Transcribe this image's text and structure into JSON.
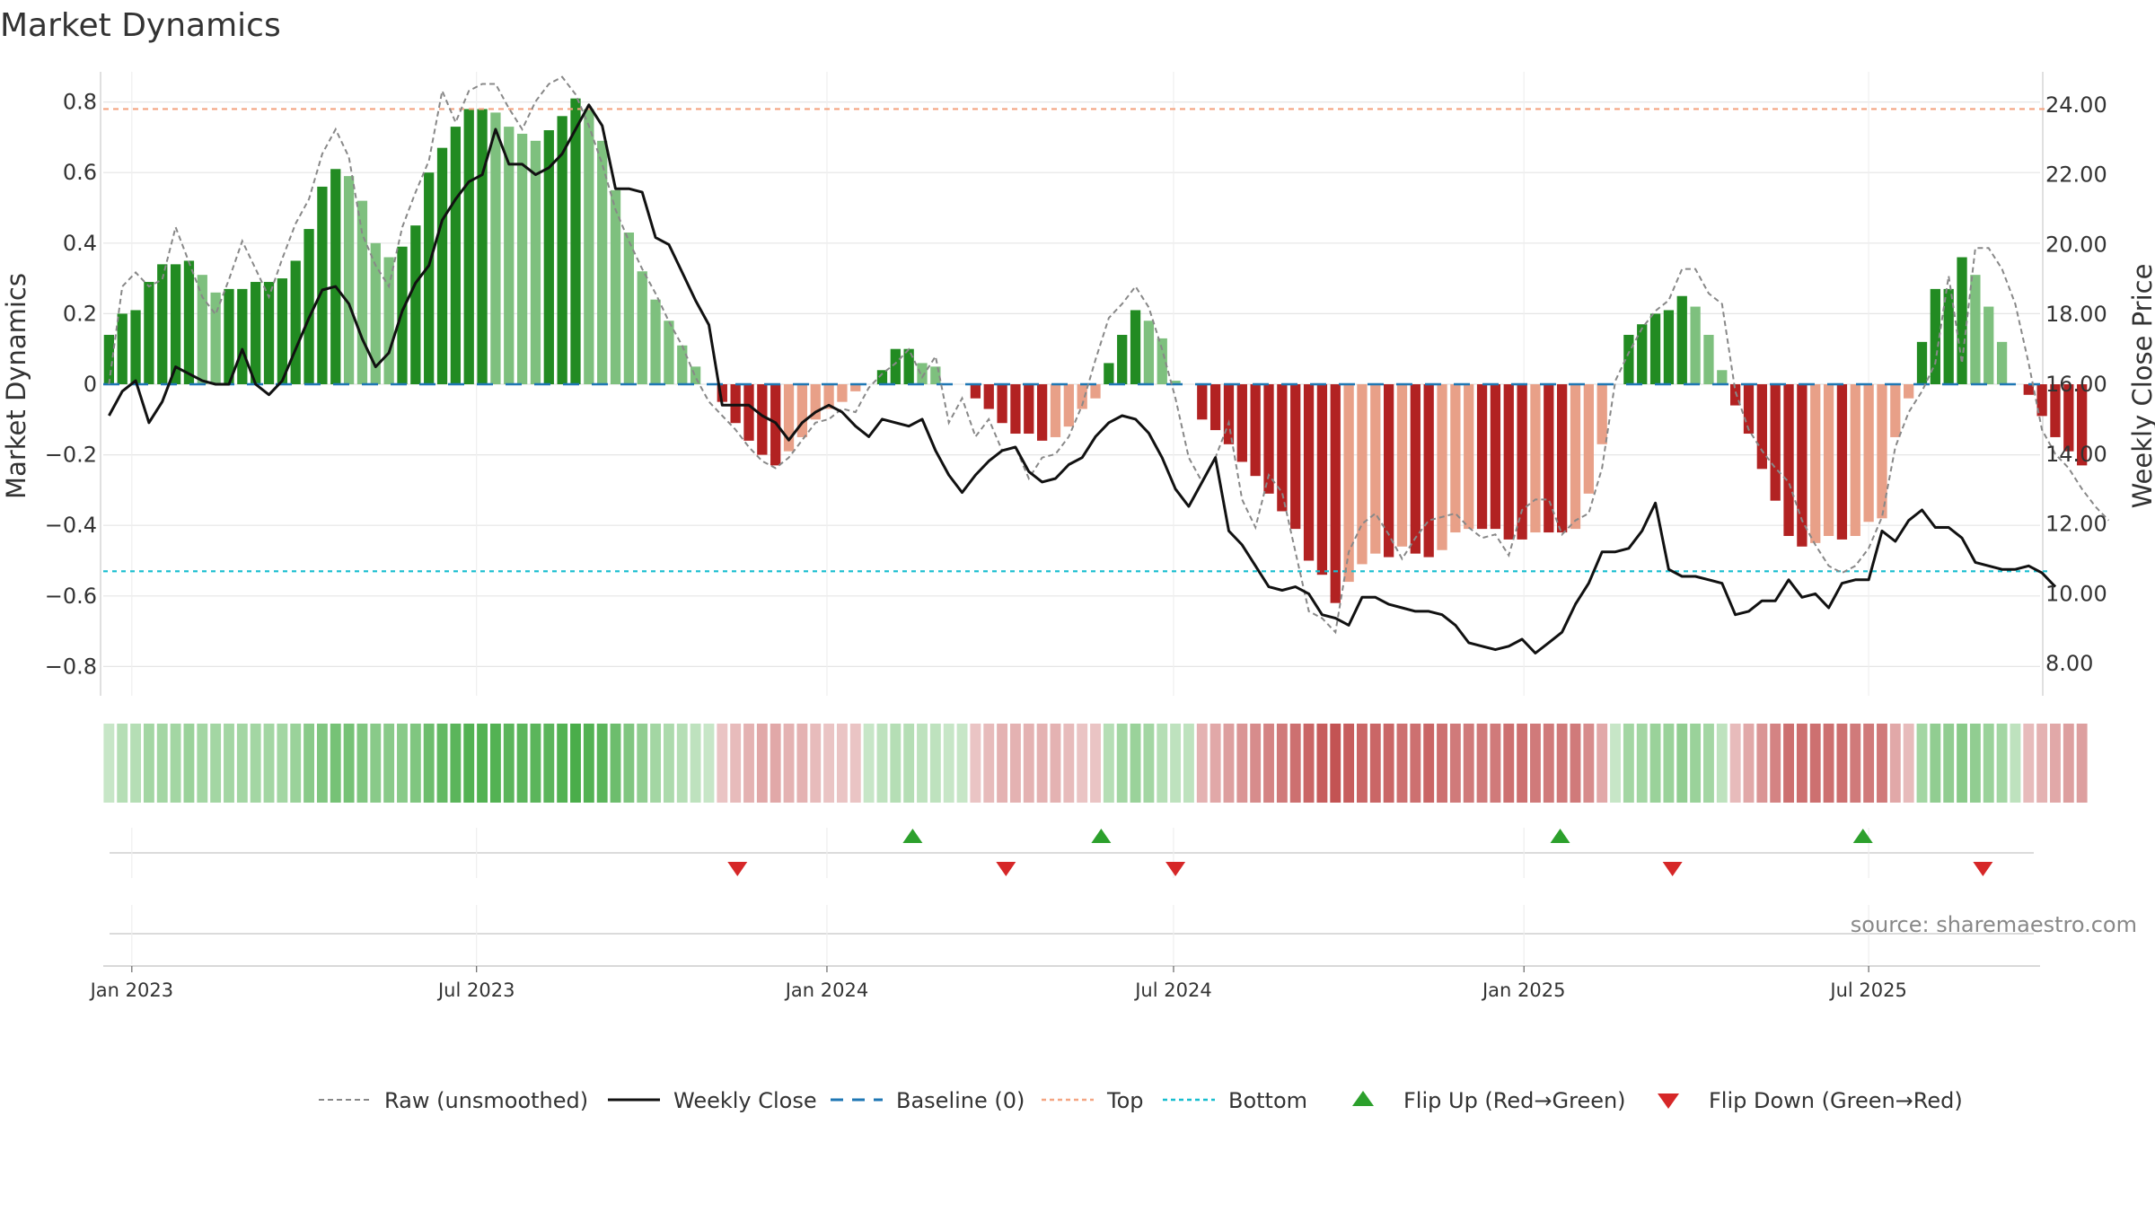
{
  "colors": {
    "green_dark": "#228B22",
    "green_light": "#7EC07E",
    "red_dark": "#B22222",
    "red_light": "#E8A088",
    "close": "#111111",
    "raw": "#888888",
    "baseline": "#1F77B4",
    "top": "#F4A582",
    "bottom": "#17BECF",
    "flip_up": "#2CA02C",
    "flip_down": "#D62728"
  },
  "chart_data": {
    "type": "bar",
    "title": "Market Dynamics",
    "ylabel_left": "Market Dynamics",
    "ylabel_right": "Weekly Close Price",
    "xlabel": "",
    "ylim_left": [
      -0.87,
      0.85
    ],
    "ylim_right": [
      6.85,
      24.72
    ],
    "yticks_left": [
      0.8,
      0.6,
      0.4,
      0.2,
      0,
      -0.2,
      -0.4,
      -0.6,
      -0.8
    ],
    "ytick_labels_left": [
      "0.8",
      "0.6",
      "0.4",
      "0.2",
      "0",
      "−0.2",
      "−0.4",
      "−0.6",
      "−0.8"
    ],
    "yticks_right": [
      24,
      22,
      20,
      18,
      16,
      14,
      12,
      10,
      8
    ],
    "ytick_labels_right": [
      "24.00",
      "22.00",
      "20.00",
      "18.00",
      "16.00",
      "14.00",
      "12.00",
      "10.00",
      "8.00"
    ],
    "start_date": "2022-12-20",
    "x_range": [
      "2022-12-17",
      "2025-09-29"
    ],
    "date_ticks": [
      {
        "label": "Jan 2023",
        "date": "2023-01-01"
      },
      {
        "label": "Jul 2023",
        "date": "2023-07-01"
      },
      {
        "label": "Jan 2024",
        "date": "2024-01-01"
      },
      {
        "label": "Jul 2024",
        "date": "2024-07-01"
      },
      {
        "label": "Jan 2025",
        "date": "2025-01-01"
      },
      {
        "label": "Jul 2025",
        "date": "2025-07-01"
      }
    ],
    "grid": true,
    "legend_position": "bottom",
    "top_level": 0.78,
    "bottom_level": -0.53,
    "baseline": 0,
    "series": [
      {
        "name": "Market Dynamics",
        "values": [
          0.14,
          0.2,
          0.21,
          0.29,
          0.34,
          0.34,
          0.35,
          0.31,
          0.26,
          0.27,
          0.27,
          0.29,
          0.29,
          0.3,
          0.35,
          0.44,
          0.56,
          0.61,
          0.59,
          0.52,
          0.4,
          0.36,
          0.39,
          0.45,
          0.6,
          0.67,
          0.73,
          0.78,
          0.78,
          0.77,
          0.73,
          0.71,
          0.69,
          0.72,
          0.76,
          0.81,
          0.78,
          0.69,
          0.55,
          0.43,
          0.32,
          0.24,
          0.18,
          0.11,
          0.05,
          0,
          -0.05,
          -0.11,
          -0.16,
          -0.2,
          -0.23,
          -0.19,
          -0.15,
          -0.1,
          -0.07,
          -0.05,
          -0.02,
          0,
          0.04,
          0.1,
          0.1,
          0.06,
          0.05,
          0,
          0,
          -0.04,
          -0.07,
          -0.11,
          -0.14,
          -0.14,
          -0.16,
          -0.15,
          -0.12,
          -0.07,
          -0.04,
          0.06,
          0.14,
          0.21,
          0.18,
          0.13,
          0.01,
          0,
          -0.1,
          -0.13,
          -0.17,
          -0.22,
          -0.26,
          -0.31,
          -0.36,
          -0.41,
          -0.5,
          -0.54,
          -0.62,
          -0.56,
          -0.51,
          -0.48,
          -0.49,
          -0.46,
          -0.48,
          -0.49,
          -0.47,
          -0.42,
          -0.41,
          -0.41,
          -0.41,
          -0.44,
          -0.44,
          -0.42,
          -0.42,
          -0.42,
          -0.41,
          -0.31,
          -0.17,
          0,
          0.14,
          0.17,
          0.2,
          0.21,
          0.25,
          0.22,
          0.14,
          0.04,
          -0.06,
          -0.14,
          -0.24,
          -0.33,
          -0.43,
          -0.46,
          -0.45,
          -0.43,
          -0.44,
          -0.43,
          -0.39,
          -0.38,
          -0.15,
          -0.04,
          0.12,
          0.27,
          0.27,
          0.36,
          0.31,
          0.22,
          0.12,
          0,
          -0.03,
          -0.09,
          -0.15,
          -0.19,
          -0.23
        ]
      },
      {
        "name": "Weekly Close",
        "values": [
          15.1,
          15.8,
          16.1,
          14.9,
          15.5,
          16.5,
          16.3,
          16.1,
          16,
          16,
          17,
          16,
          15.7,
          16.1,
          17,
          17.9,
          18.7,
          18.8,
          18.3,
          17.3,
          16.5,
          16.9,
          18.1,
          18.9,
          19.4,
          20.7,
          21.3,
          21.8,
          22,
          23.3,
          22.3,
          22.3,
          22,
          22.2,
          22.6,
          23.3,
          24,
          23.4,
          21.6,
          21.6,
          21.5,
          20.2,
          20,
          19.2,
          18.4,
          17.7,
          15.4,
          15.4,
          15.4,
          15.1,
          14.9,
          14.4,
          14.9,
          15.2,
          15.4,
          15.2,
          14.8,
          14.5,
          15,
          14.9,
          14.8,
          15,
          14.1,
          13.4,
          12.9,
          13.4,
          13.8,
          14.1,
          14.2,
          13.5,
          13.2,
          13.3,
          13.7,
          13.9,
          14.5,
          14.9,
          15.1,
          15,
          14.6,
          13.9,
          13,
          12.5,
          13.2,
          13.9,
          11.8,
          11.4,
          10.8,
          10.2,
          10.1,
          10.2,
          10,
          9.4,
          9.3,
          9.1,
          9.9,
          9.9,
          9.7,
          9.6,
          9.5,
          9.5,
          9.4,
          9.1,
          8.6,
          8.5,
          8.4,
          8.5,
          8.7,
          8.3,
          8.6,
          8.9,
          9.7,
          10.3,
          11.2,
          11.2,
          11.3,
          11.8,
          12.6,
          10.7,
          10.5,
          10.5,
          10.4,
          10.3,
          9.4,
          9.5,
          9.8,
          9.8,
          10.4,
          9.9,
          10,
          9.6,
          10.3,
          10.4,
          10.4,
          11.8,
          11.5,
          12.1,
          12.4,
          11.9,
          11.9,
          11.6,
          10.9,
          10.8,
          10.7,
          10.7,
          10.8,
          10.6,
          10.2
        ]
      },
      {
        "name": "Raw (unsmoothed)",
        "values": [
          16,
          18.8,
          19.2,
          18.8,
          19,
          20.5,
          19.5,
          18.5,
          18,
          19,
          20.1,
          19.3,
          18.5,
          19.6,
          20.6,
          21.3,
          22.6,
          23.3,
          22.5,
          20.3,
          19.4,
          18.8,
          20.5,
          21.5,
          22.4,
          24.4,
          23.5,
          24.4,
          24.6,
          24.6,
          23.9,
          23.3,
          24.1,
          24.6,
          24.8,
          24.3,
          23.4,
          22.3,
          21,
          20.1,
          19.3,
          18.6,
          17.8,
          17.1,
          16.2,
          15.5,
          15.1,
          14.7,
          14.2,
          13.8,
          13.6,
          13.9,
          14.4,
          14.9,
          15,
          15.3,
          15.2,
          15.9,
          16.3,
          16.6,
          17,
          16.2,
          16.8,
          14.9,
          15.6,
          14.5,
          15,
          14.1,
          14.2,
          13.3,
          13.9,
          14,
          14.5,
          15.4,
          16.7,
          17.9,
          18.3,
          18.8,
          18.2,
          17,
          15.6,
          13.9,
          13.2,
          13.9,
          14.9,
          12.7,
          11.9,
          13.4,
          12.9,
          11.2,
          9.5,
          9.3,
          8.9,
          11.2,
          12,
          12.3,
          11.7,
          11,
          11.6,
          12.1,
          12.2,
          12.3,
          11.9,
          11.6,
          11.7,
          11.1,
          12.4,
          12.7,
          12.7,
          11.7,
          12.1,
          12.3,
          13.6,
          16.1,
          16.9,
          17.6,
          18.1,
          18.4,
          19.3,
          19.3,
          18.6,
          18.3,
          15.8,
          14.7,
          14.1,
          13.6,
          13.2,
          12.1,
          11.4,
          10.8,
          10.6,
          10.8,
          11.3,
          12.2,
          14.2,
          15.2,
          15.8,
          16.6,
          19.1,
          16.6,
          19.9,
          19.9,
          19.3,
          18.3,
          16.6,
          14.7,
          14,
          13.6,
          13,
          12.5,
          12.1
        ]
      }
    ],
    "regime_strip": {
      "name": "Regime",
      "intensity": [
        0.1,
        0.2,
        0.2,
        0.3,
        0.3,
        0.3,
        0.35,
        0.3,
        0.3,
        0.3,
        0.3,
        0.3,
        0.3,
        0.3,
        0.35,
        0.45,
        0.5,
        0.55,
        0.55,
        0.5,
        0.45,
        0.45,
        0.45,
        0.5,
        0.6,
        0.65,
        0.7,
        0.75,
        0.75,
        0.75,
        0.7,
        0.7,
        0.7,
        0.7,
        0.75,
        0.8,
        0.75,
        0.7,
        0.6,
        0.5,
        0.4,
        0.3,
        0.25,
        0.2,
        0.15,
        0.1,
        0.1,
        0.15,
        0.2,
        0.25,
        0.25,
        0.2,
        0.2,
        0.15,
        0.1,
        0.1,
        0.1,
        0.1,
        0.15,
        0.2,
        0.2,
        0.15,
        0.15,
        0.1,
        0.1,
        0.1,
        0.15,
        0.2,
        0.2,
        0.2,
        0.2,
        0.2,
        0.15,
        0.1,
        0.1,
        0.2,
        0.3,
        0.35,
        0.3,
        0.2,
        0.15,
        0.15,
        0.2,
        0.25,
        0.3,
        0.35,
        0.4,
        0.45,
        0.5,
        0.55,
        0.6,
        0.65,
        0.7,
        0.65,
        0.6,
        0.6,
        0.6,
        0.55,
        0.55,
        0.6,
        0.55,
        0.5,
        0.5,
        0.5,
        0.5,
        0.55,
        0.55,
        0.5,
        0.5,
        0.5,
        0.5,
        0.4,
        0.25,
        0.1,
        0.3,
        0.3,
        0.35,
        0.35,
        0.4,
        0.35,
        0.3,
        0.15,
        0.15,
        0.25,
        0.35,
        0.45,
        0.55,
        0.55,
        0.55,
        0.55,
        0.55,
        0.5,
        0.5,
        0.5,
        0.25,
        0.15,
        0.3,
        0.4,
        0.4,
        0.45,
        0.4,
        0.35,
        0.3,
        0.15,
        0.15,
        0.2,
        0.25,
        0.3,
        0.3
      ]
    },
    "flips": {
      "up_dates": [
        "2024-02-15",
        "2024-05-24",
        "2025-01-20",
        "2025-06-28"
      ],
      "down_dates": [
        "2023-11-15",
        "2024-04-04",
        "2024-07-02",
        "2025-03-20",
        "2025-08-30"
      ]
    }
  },
  "legend": [
    {
      "key": "raw",
      "label": "Raw (unsmoothed)"
    },
    {
      "key": "close",
      "label": "Weekly Close"
    },
    {
      "key": "baseline",
      "label": "Baseline (0)"
    },
    {
      "key": "top",
      "label": "Top"
    },
    {
      "key": "bottom",
      "label": "Bottom"
    },
    {
      "key": "flip_up",
      "label": "Flip Up (Red→Green)"
    },
    {
      "key": "flip_down",
      "label": "Flip Down (Green→Red)"
    }
  ],
  "source_text": "source: sharemaestro.com"
}
